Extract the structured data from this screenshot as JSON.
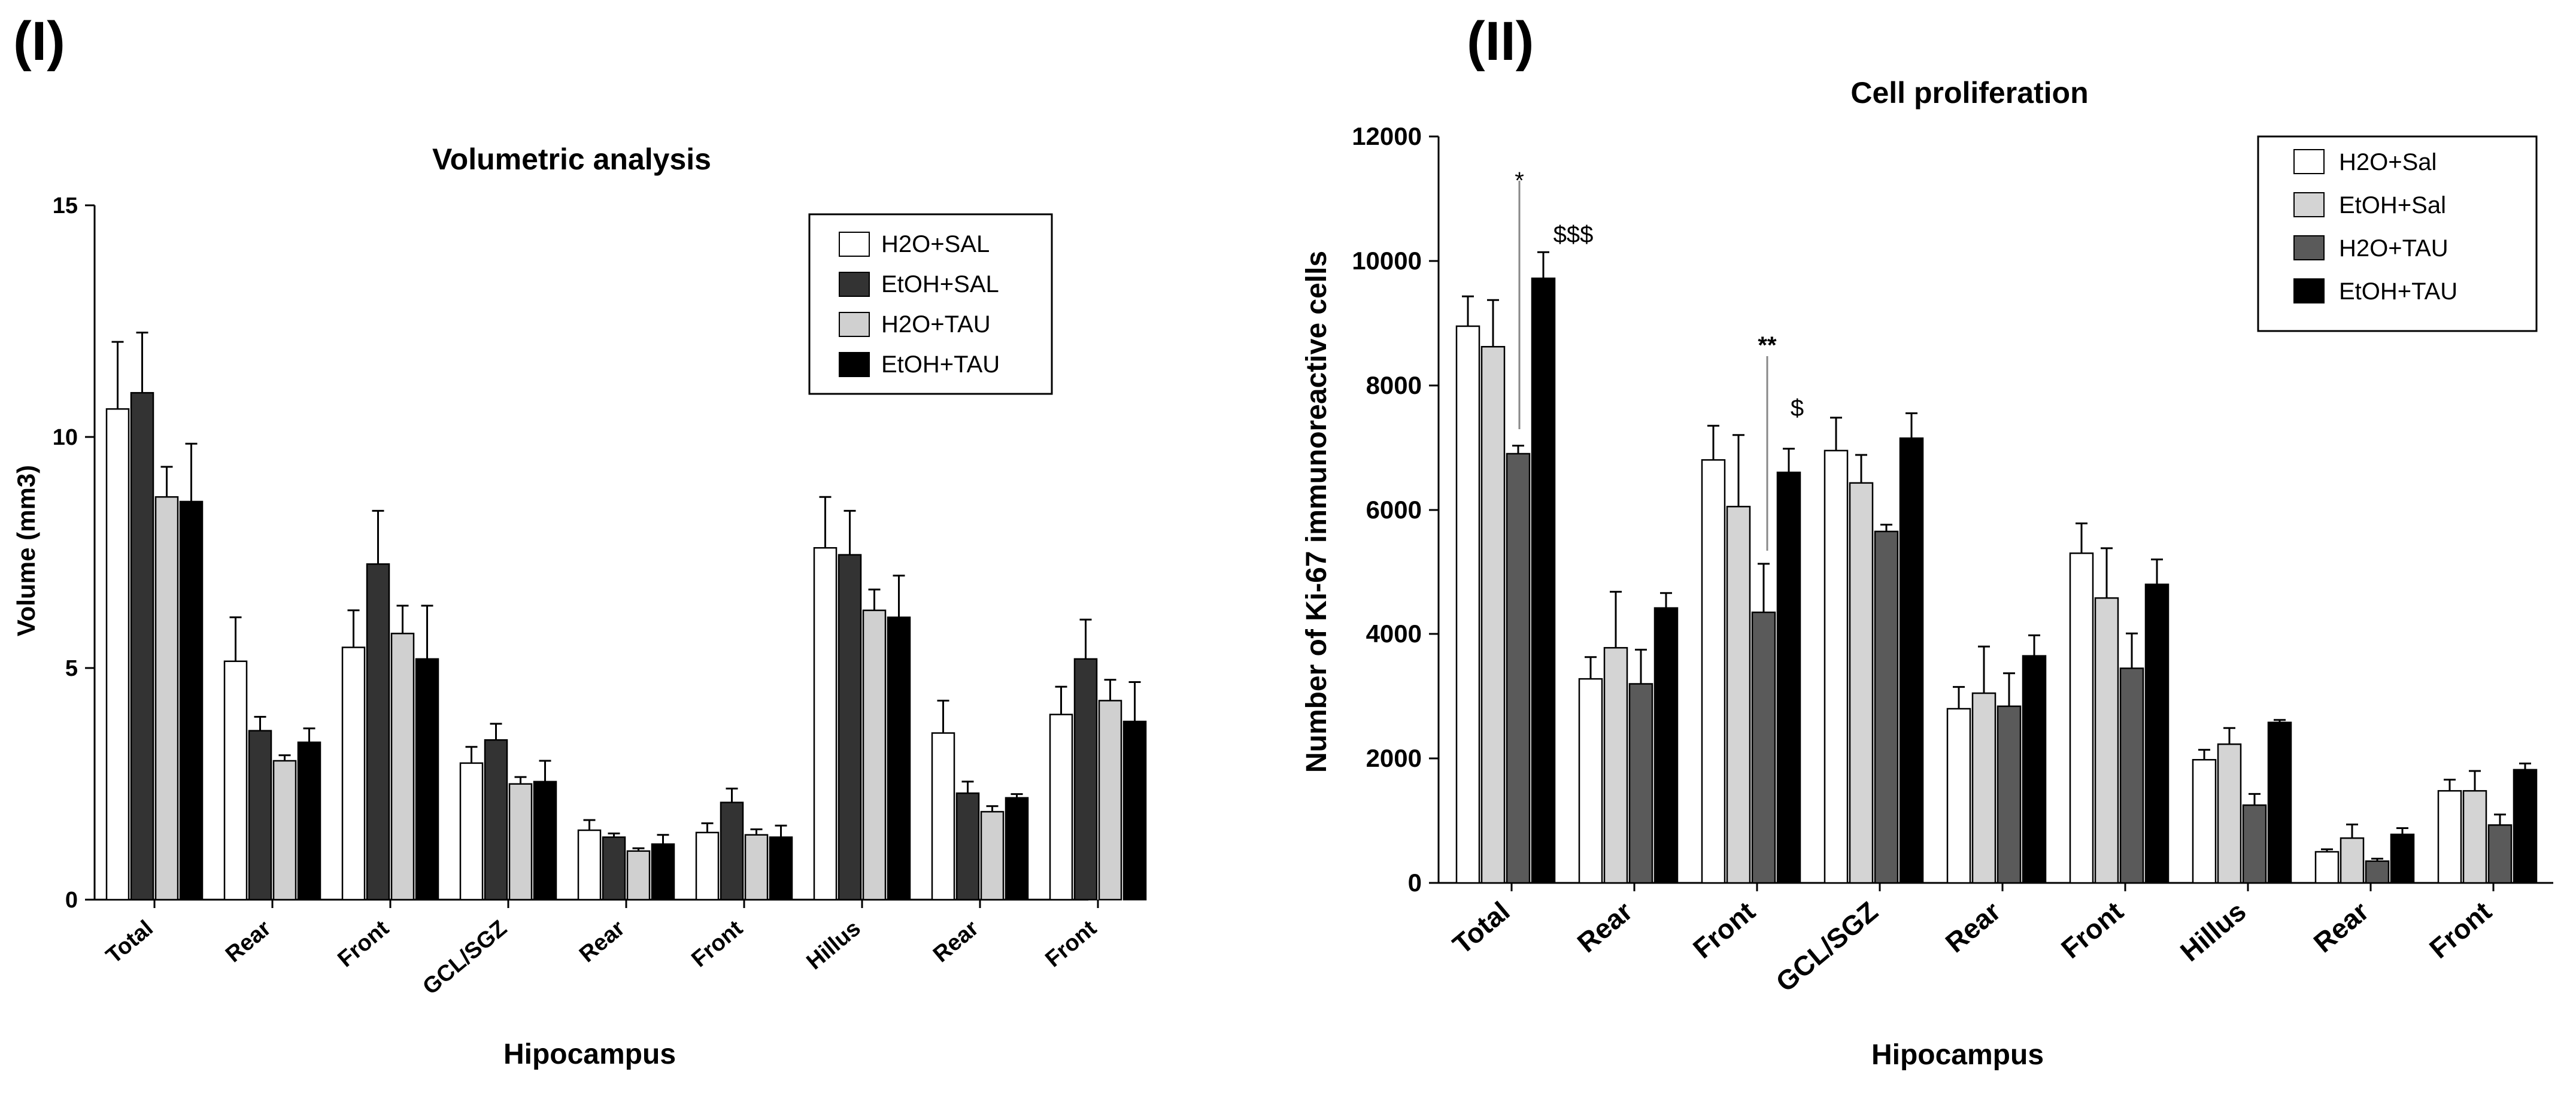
{
  "panels": {
    "left_label": "(I)",
    "right_label": "(II)"
  },
  "chart_data": [
    {
      "type": "bar",
      "title": "Volumetric analysis",
      "xlabel": "Hipocampus",
      "ylabel": "Volume (mm3)",
      "ylim": [
        0,
        15
      ],
      "yticks": [
        "0",
        "5",
        "10",
        "15"
      ],
      "categories": [
        "Total",
        "Rear",
        "Front",
        "GCL/SGZ",
        "Rear",
        "Front",
        "Hillus",
        "Rear",
        "Front"
      ],
      "legend_position": "top-right",
      "series": [
        {
          "name": "H2O+SAL",
          "color": "#ffffff",
          "values": [
            10.6,
            5.15,
            5.45,
            2.95,
            1.5,
            1.45,
            7.6,
            3.6,
            4.0
          ],
          "errors": [
            1.45,
            0.95,
            0.8,
            0.35,
            0.22,
            0.2,
            1.1,
            0.7,
            0.6
          ]
        },
        {
          "name": "EtOH+SAL",
          "color": "#333333",
          "values": [
            10.95,
            3.65,
            7.25,
            3.45,
            1.35,
            2.1,
            7.45,
            2.3,
            5.2
          ],
          "errors": [
            1.3,
            0.3,
            1.15,
            0.35,
            0.08,
            0.3,
            0.95,
            0.25,
            0.85
          ]
        },
        {
          "name": "H2O+TAU",
          "color": "#d0d0d0",
          "values": [
            8.7,
            3.0,
            5.75,
            2.5,
            1.05,
            1.4,
            6.25,
            1.9,
            4.3
          ],
          "errors": [
            0.65,
            0.12,
            0.6,
            0.15,
            0.06,
            0.12,
            0.45,
            0.12,
            0.45
          ]
        },
        {
          "name": "EtOH+TAU",
          "color": "#000000",
          "values": [
            8.6,
            3.4,
            5.2,
            2.55,
            1.2,
            1.35,
            6.1,
            2.2,
            3.85
          ],
          "errors": [
            1.25,
            0.3,
            1.15,
            0.45,
            0.2,
            0.25,
            0.9,
            0.08,
            0.85
          ]
        }
      ]
    },
    {
      "type": "bar",
      "title": "Cell proliferation",
      "xlabel": "Hipocampus",
      "ylabel": "Number of Ki-67 immunoreactive cells",
      "ylim": [
        0,
        12000
      ],
      "yticks": [
        "0",
        "2000",
        "4000",
        "6000",
        "8000",
        "10000",
        "12000"
      ],
      "categories": [
        "Total",
        "Rear",
        "Front",
        "GCL/SGZ",
        "Rear",
        "Front",
        "Hillus",
        "Rear",
        "Front"
      ],
      "legend_position": "top-right",
      "series": [
        {
          "name": "H2O+Sal",
          "color": "#ffffff",
          "values": [
            8950,
            3280,
            6800,
            6950,
            2800,
            5300,
            1980,
            500,
            1480
          ],
          "errors": [
            480,
            350,
            550,
            530,
            350,
            480,
            160,
            40,
            180
          ]
        },
        {
          "name": "EtOH+Sal",
          "color": "#d4d4d4",
          "values": [
            8620,
            3780,
            6050,
            6430,
            3050,
            4580,
            2230,
            720,
            1480
          ],
          "errors": [
            750,
            900,
            1150,
            450,
            750,
            800,
            260,
            220,
            320
          ]
        },
        {
          "name": "H2O+TAU",
          "color": "#5a5a5a",
          "values": [
            6900,
            3200,
            4350,
            5650,
            2840,
            3450,
            1250,
            350,
            930
          ],
          "errors": [
            130,
            550,
            780,
            110,
            530,
            560,
            180,
            40,
            170
          ]
        },
        {
          "name": "EtOH+TAU",
          "color": "#000000",
          "values": [
            9720,
            4420,
            6600,
            7150,
            3650,
            4800,
            2580,
            780,
            1820
          ],
          "errors": [
            420,
            240,
            380,
            400,
            330,
            400,
            40,
            100,
            100
          ]
        }
      ],
      "annotations": [
        {
          "text": "*",
          "group": 0
        },
        {
          "text": "$$$",
          "group": 0
        },
        {
          "text": "**",
          "group": 2
        },
        {
          "text": "$",
          "group": 2
        }
      ]
    }
  ]
}
